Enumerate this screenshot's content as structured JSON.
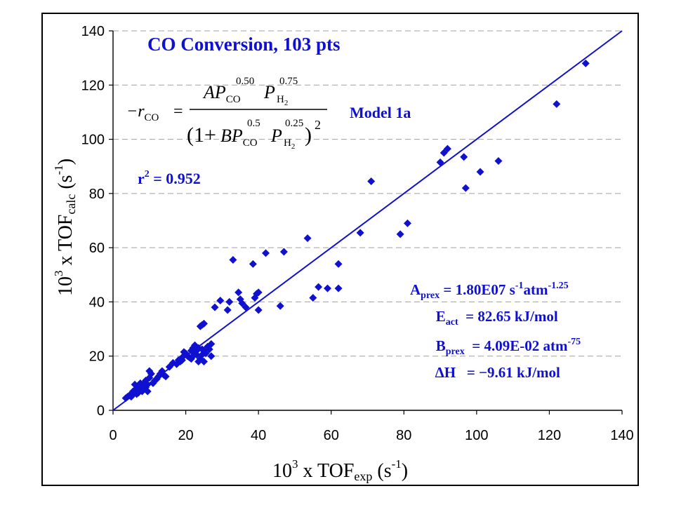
{
  "chart_data": {
    "type": "scatter",
    "title": "CO Conversion, 103 pts",
    "xlabel": {
      "pre": "10",
      "pre_sup": "3",
      "main": " x TOF",
      "sub": "exp",
      "unit": " (s",
      "unit_sup": "-1",
      "close": ")"
    },
    "ylabel": {
      "pre": "10",
      "pre_sup": "3",
      "main": " x TOF",
      "sub": "calc",
      "unit": " (s",
      "unit_sup": "-1",
      "close": ")"
    },
    "xlim": [
      0,
      140
    ],
    "ylim": [
      0,
      140
    ],
    "xticks": [
      "0",
      "20",
      "40",
      "60",
      "80",
      "100",
      "120",
      "140"
    ],
    "yticks": [
      "0",
      "20",
      "40",
      "60",
      "80",
      "100",
      "120",
      "140"
    ],
    "grid": "horizontal dashed",
    "marker_color": "#1010d0",
    "line_color": "#1010d0",
    "parity_line": [
      [
        0,
        0
      ],
      [
        140,
        140
      ]
    ],
    "model_label": "Model 1a",
    "r2": {
      "label": "r",
      "sup": "2",
      "value": " = 0.952"
    },
    "equation": {
      "lhs_minus": "−r",
      "lhs_sub": "CO",
      "equals": "=",
      "num_A": "AP",
      "num_A_sub": "CO",
      "num_A_sup": "0.50",
      "num_P": "P",
      "num_P_sub": "H",
      "num_P_subsub": "2",
      "num_P_sup": "0.75",
      "den_open": "(1+",
      "den_B": "BP",
      "den_B_sub": "CO",
      "den_B_sup": "0.5",
      "den_P": "P",
      "den_P_sub": "H",
      "den_P_subsub": "2",
      "den_P_sup": "0.25",
      "den_close": ")",
      "den_pow": "2"
    },
    "params": [
      {
        "sym": "A",
        "sub": "prex",
        "text": " = 1.80E07 s",
        "sup1": "-1",
        "text2": "atm",
        "sup2": "-1.25"
      },
      {
        "sym": "E",
        "sub": "act",
        "text": "  = 82.65 kJ/mol",
        "sup1": "",
        "text2": "",
        "sup2": ""
      },
      {
        "sym": "B",
        "sub": "prex",
        "text": "  = 4.09E-02 atm",
        "sup1": "-75",
        "text2": "",
        "sup2": ""
      },
      {
        "sym": "ΔH",
        "sub": "",
        "text": "   = −9.61 kJ/mol",
        "sup1": "",
        "text2": "",
        "sup2": ""
      }
    ],
    "points": [
      [
        3.5,
        4.5
      ],
      [
        4.5,
        5.5
      ],
      [
        5,
        5
      ],
      [
        5.5,
        6
      ],
      [
        6,
        9.5
      ],
      [
        6.5,
        7
      ],
      [
        7,
        6.5
      ],
      [
        7.5,
        8
      ],
      [
        8,
        9
      ],
      [
        8.5,
        10
      ],
      [
        9,
        11
      ],
      [
        9.5,
        7
      ],
      [
        10,
        12
      ],
      [
        10,
        14.5
      ],
      [
        10.5,
        13.5
      ],
      [
        11,
        10
      ],
      [
        12,
        11.5
      ],
      [
        13.5,
        14.5
      ],
      [
        14,
        13
      ],
      [
        14.5,
        12.5
      ],
      [
        15.5,
        16
      ],
      [
        16.5,
        17.5
      ],
      [
        18,
        18.5
      ],
      [
        18.5,
        18
      ],
      [
        19,
        19.5
      ],
      [
        19.5,
        21.5
      ],
      [
        20.5,
        20
      ],
      [
        21,
        19.5
      ],
      [
        21.5,
        22
      ],
      [
        22,
        23
      ],
      [
        22.5,
        21
      ],
      [
        23,
        20.5
      ],
      [
        23.5,
        18
      ],
      [
        23,
        22
      ],
      [
        24,
        19
      ],
      [
        24.5,
        22.5
      ],
      [
        25,
        18
      ],
      [
        25.5,
        21
      ],
      [
        24,
        31
      ],
      [
        25,
        32
      ],
      [
        26,
        23.5
      ],
      [
        27,
        24.5
      ],
      [
        27,
        20
      ],
      [
        28,
        38
      ],
      [
        29.5,
        40.5
      ],
      [
        31.5,
        37
      ],
      [
        32,
        40
      ],
      [
        33,
        55.5
      ],
      [
        34.5,
        43.5
      ],
      [
        35,
        41
      ],
      [
        36.5,
        38
      ],
      [
        38.5,
        54
      ],
      [
        39,
        41.5
      ],
      [
        39.5,
        43
      ],
      [
        40,
        37
      ],
      [
        42,
        58
      ],
      [
        46,
        38.5
      ],
      [
        47,
        58.5
      ],
      [
        53.5,
        63.5
      ],
      [
        55,
        41.5
      ],
      [
        56.5,
        45.5
      ],
      [
        59,
        45
      ],
      [
        62,
        54
      ],
      [
        62,
        45
      ],
      [
        68,
        65.5
      ],
      [
        71,
        84.5
      ],
      [
        79,
        65
      ],
      [
        81,
        69
      ],
      [
        90,
        91.5
      ],
      [
        91,
        95
      ],
      [
        92,
        96.5
      ],
      [
        96.5,
        93.5
      ],
      [
        97,
        82
      ],
      [
        101,
        88
      ],
      [
        106,
        92
      ],
      [
        122,
        113
      ],
      [
        130,
        128
      ],
      [
        6,
        7.5
      ],
      [
        7,
        8.5
      ],
      [
        8,
        7
      ],
      [
        9,
        8.5
      ],
      [
        5.5,
        7
      ],
      [
        7.5,
        10
      ],
      [
        8.5,
        8
      ],
      [
        6.5,
        6
      ],
      [
        9.5,
        9.5
      ],
      [
        4,
        5
      ],
      [
        22,
        20
      ],
      [
        23.5,
        23
      ],
      [
        24.5,
        20.5
      ],
      [
        20,
        21
      ],
      [
        25,
        22
      ],
      [
        21.5,
        19
      ],
      [
        26.5,
        22.5
      ],
      [
        19,
        18.5
      ],
      [
        17.5,
        17
      ],
      [
        22.5,
        24
      ],
      [
        11.5,
        11
      ],
      [
        12.5,
        12.5
      ],
      [
        13,
        13.5
      ],
      [
        24.5,
        31.5
      ],
      [
        35.5,
        39.5
      ],
      [
        40,
        43.5
      ]
    ]
  }
}
